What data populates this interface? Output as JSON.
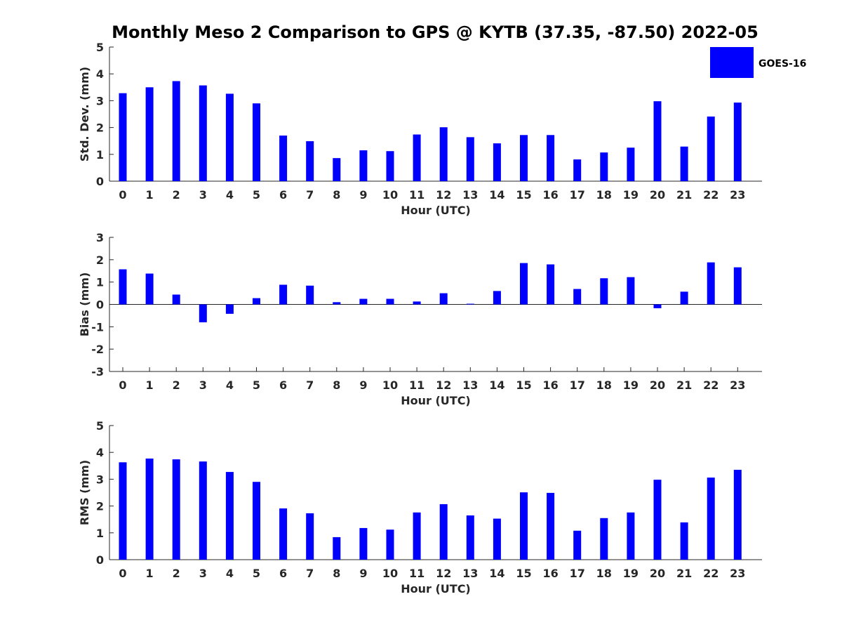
{
  "title": "Monthly Meso 2 Comparison to GPS @ KYTB (37.35, -87.50) 2022-05",
  "legend": {
    "label": "GOES-16",
    "color": "#0000ff"
  },
  "chart_data": [
    {
      "type": "bar",
      "ylabel": "Std. Dev. (mm)",
      "xlabel": "Hour (UTC)",
      "ylim": [
        0,
        5
      ],
      "yticks": [
        0,
        1,
        2,
        3,
        4,
        5
      ],
      "categories": [
        "0",
        "1",
        "2",
        "3",
        "4",
        "5",
        "6",
        "7",
        "8",
        "9",
        "10",
        "11",
        "12",
        "13",
        "14",
        "15",
        "16",
        "17",
        "18",
        "19",
        "20",
        "21",
        "22",
        "23"
      ],
      "series": [
        {
          "name": "GOES-16",
          "values": [
            3.28,
            3.5,
            3.73,
            3.57,
            3.26,
            2.9,
            1.7,
            1.49,
            0.86,
            1.15,
            1.12,
            1.74,
            2.01,
            1.64,
            1.41,
            1.72,
            1.72,
            0.81,
            1.07,
            1.25,
            2.98,
            1.29,
            2.41,
            2.93
          ]
        }
      ]
    },
    {
      "type": "bar",
      "ylabel": "Bias (mm)",
      "xlabel": "Hour (UTC)",
      "ylim": [
        -3,
        3
      ],
      "yticks": [
        -3,
        -2,
        -1,
        0,
        1,
        2,
        3
      ],
      "categories": [
        "0",
        "1",
        "2",
        "3",
        "4",
        "5",
        "6",
        "7",
        "8",
        "9",
        "10",
        "11",
        "12",
        "13",
        "14",
        "15",
        "16",
        "17",
        "18",
        "19",
        "20",
        "21",
        "22",
        "23"
      ],
      "series": [
        {
          "name": "GOES-16",
          "values": [
            1.57,
            1.38,
            0.44,
            -0.8,
            -0.42,
            0.28,
            0.88,
            0.84,
            0.1,
            0.25,
            0.25,
            0.13,
            0.5,
            0.03,
            0.6,
            1.85,
            1.79,
            0.69,
            1.17,
            1.22,
            -0.17,
            0.57,
            1.88,
            1.66
          ]
        }
      ]
    },
    {
      "type": "bar",
      "ylabel": "RMS (mm)",
      "xlabel": "Hour (UTC)",
      "ylim": [
        0,
        5
      ],
      "yticks": [
        0,
        1,
        2,
        3,
        4,
        5
      ],
      "categories": [
        "0",
        "1",
        "2",
        "3",
        "4",
        "5",
        "6",
        "7",
        "8",
        "9",
        "10",
        "11",
        "12",
        "13",
        "14",
        "15",
        "16",
        "17",
        "18",
        "19",
        "20",
        "21",
        "22",
        "23"
      ],
      "series": [
        {
          "name": "GOES-16",
          "values": [
            3.63,
            3.77,
            3.74,
            3.66,
            3.27,
            2.9,
            1.91,
            1.73,
            0.84,
            1.18,
            1.12,
            1.76,
            2.07,
            1.65,
            1.53,
            2.51,
            2.49,
            1.08,
            1.55,
            1.76,
            2.98,
            1.39,
            3.06,
            3.35
          ]
        }
      ]
    }
  ]
}
